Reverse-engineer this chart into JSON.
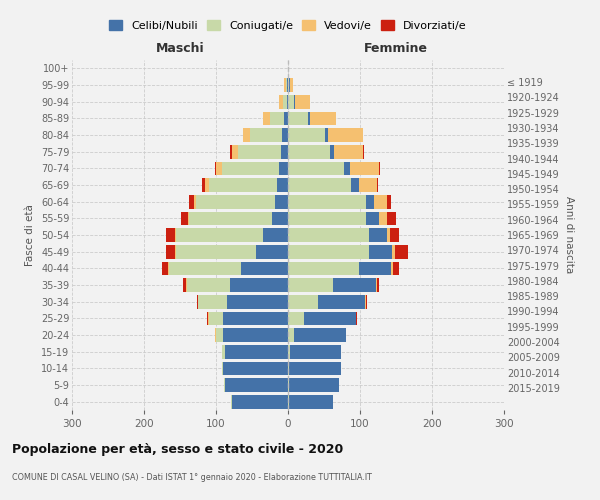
{
  "age_groups": [
    "0-4",
    "5-9",
    "10-14",
    "15-19",
    "20-24",
    "25-29",
    "30-34",
    "35-39",
    "40-44",
    "45-49",
    "50-54",
    "55-59",
    "60-64",
    "65-69",
    "70-74",
    "75-79",
    "80-84",
    "85-89",
    "90-94",
    "95-99",
    "100+"
  ],
  "birth_years": [
    "2015-2019",
    "2010-2014",
    "2005-2009",
    "2000-2004",
    "1995-1999",
    "1990-1994",
    "1985-1989",
    "1980-1984",
    "1975-1979",
    "1970-1974",
    "1965-1969",
    "1960-1964",
    "1955-1959",
    "1950-1954",
    "1945-1949",
    "1940-1944",
    "1935-1939",
    "1930-1934",
    "1925-1929",
    "1920-1924",
    "≤ 1919"
  ],
  "maschi": {
    "celibi": [
      78,
      88,
      90,
      88,
      90,
      90,
      85,
      80,
      65,
      45,
      35,
      22,
      18,
      15,
      12,
      10,
      8,
      5,
      2,
      1,
      0
    ],
    "coniugati": [
      1,
      1,
      2,
      3,
      10,
      20,
      40,
      60,
      100,
      110,
      120,
      115,
      110,
      95,
      80,
      60,
      45,
      20,
      5,
      2,
      0
    ],
    "vedovi": [
      0,
      0,
      0,
      0,
      1,
      1,
      0,
      1,
      2,
      2,
      2,
      2,
      2,
      5,
      8,
      8,
      10,
      10,
      5,
      2,
      0
    ],
    "divorziati": [
      0,
      0,
      0,
      0,
      0,
      1,
      2,
      5,
      8,
      12,
      12,
      10,
      8,
      4,
      2,
      2,
      0,
      0,
      0,
      0,
      0
    ]
  },
  "femmine": {
    "nubili": [
      62,
      70,
      72,
      70,
      72,
      72,
      65,
      60,
      45,
      32,
      25,
      18,
      12,
      10,
      8,
      6,
      4,
      3,
      2,
      1,
      0
    ],
    "coniugate": [
      1,
      1,
      2,
      3,
      8,
      22,
      42,
      62,
      98,
      112,
      112,
      108,
      108,
      88,
      78,
      58,
      52,
      28,
      8,
      2,
      0
    ],
    "vedove": [
      0,
      0,
      0,
      0,
      0,
      1,
      1,
      1,
      3,
      4,
      5,
      12,
      18,
      25,
      40,
      40,
      48,
      35,
      20,
      4,
      0
    ],
    "divorziate": [
      0,
      0,
      0,
      0,
      0,
      1,
      2,
      4,
      8,
      18,
      12,
      12,
      5,
      2,
      2,
      2,
      0,
      0,
      0,
      0,
      0
    ]
  },
  "colors": {
    "celibi_nubili": "#4472a8",
    "coniugati": "#c8d9a8",
    "vedovi": "#f5c070",
    "divorziati": "#cc2010"
  },
  "xlim": 300,
  "title": "Popolazione per età, sesso e stato civile - 2020",
  "subtitle": "COMUNE DI CASAL VELINO (SA) - Dati ISTAT 1° gennaio 2020 - Elaborazione TUTTITALIA.IT",
  "ylabel_left": "Fasce di età",
  "ylabel_right": "Anni di nascita",
  "xlabel_left": "Maschi",
  "xlabel_right": "Femmine",
  "legend_labels": [
    "Celibi/Nubili",
    "Coniugati/e",
    "Vedovi/e",
    "Divorziati/e"
  ],
  "bg_color": "#f2f2f2",
  "grid_color": "#cccccc"
}
